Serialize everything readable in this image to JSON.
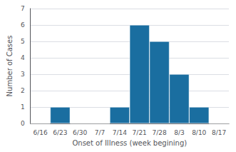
{
  "chart_data": {
    "type": "bar",
    "categories": [
      "6/16",
      "6/23",
      "6/30",
      "7/7",
      "7/14",
      "7/21",
      "7/28",
      "8/3",
      "8/10",
      "8/17"
    ],
    "values": [
      0,
      1,
      0,
      0,
      1,
      6,
      5,
      3,
      1,
      0
    ],
    "color": "#1a6ea0",
    "xlabel": "Onset of Illness (week begining)",
    "ylabel": "Number of Cases",
    "ylim": [
      0,
      7
    ],
    "yticks": [
      0,
      1,
      2,
      3,
      4,
      5,
      6,
      7
    ],
    "grid": true
  }
}
